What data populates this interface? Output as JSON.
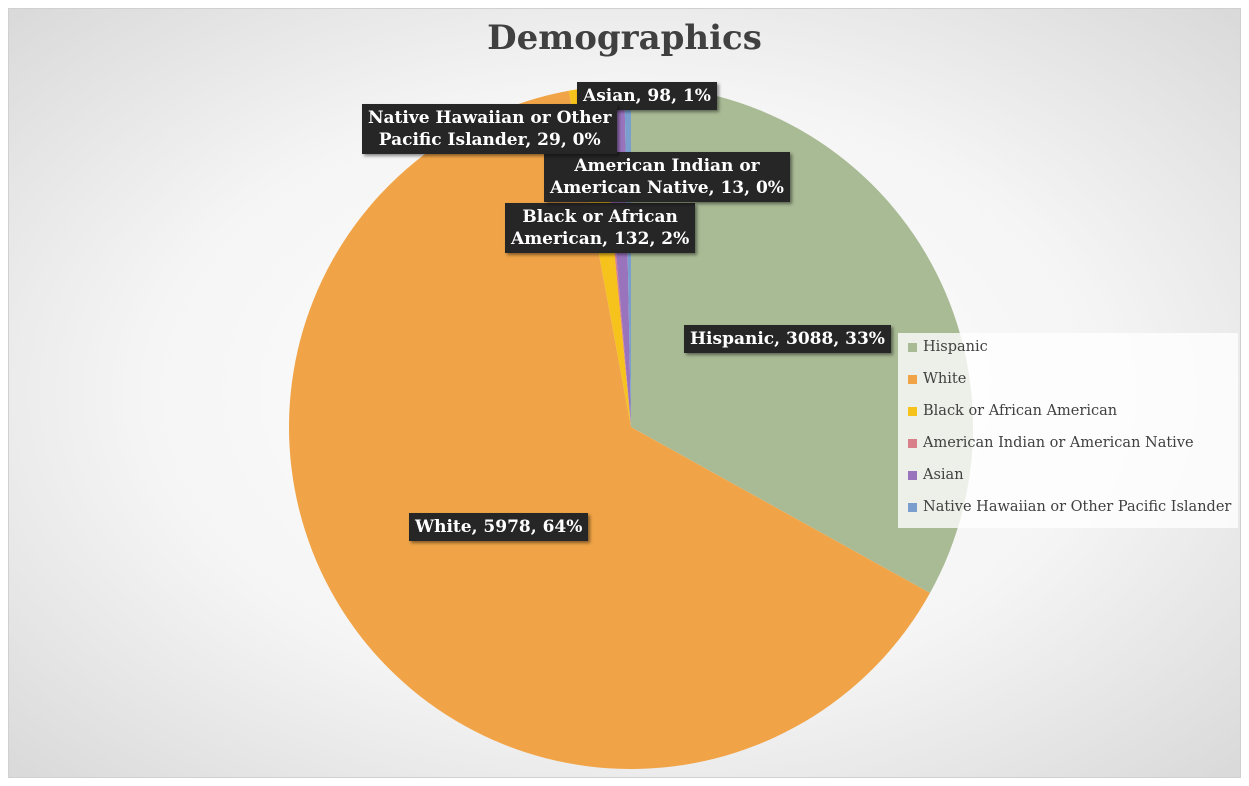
{
  "chart_data": {
    "type": "pie",
    "title": "Demographics",
    "legend_position": "right",
    "slices": [
      {
        "name": "Hispanic",
        "value": 3088,
        "percent_label": "33%",
        "color": "#a9bb95",
        "label": "Hispanic, 3088, 33%"
      },
      {
        "name": "White",
        "value": 5978,
        "percent_label": "64%",
        "color": "#f0a447",
        "label": "White, 5978, 64%"
      },
      {
        "name": "Black or African American",
        "value": 132,
        "percent_label": "2%",
        "color": "#f6c21c",
        "label_line1": "Black or African",
        "label_line2": "American, 132, 2%"
      },
      {
        "name": "American Indian or American Native",
        "value": 13,
        "percent_label": "0%",
        "color": "#d87f8a",
        "label_line1": "American Indian or",
        "label_line2": "American Native, 13, 0%"
      },
      {
        "name": "Asian",
        "value": 98,
        "percent_label": "1%",
        "color": "#9a73bd",
        "label": "Asian, 98, 1%"
      },
      {
        "name": "Native Hawaiian or Other Pacific Islander",
        "value": 29,
        "percent_label": "0%",
        "color": "#7a9fcf",
        "label_line1": "Native Hawaiian or Other",
        "label_line2": "Pacific Islander, 29, 0%"
      }
    ]
  }
}
